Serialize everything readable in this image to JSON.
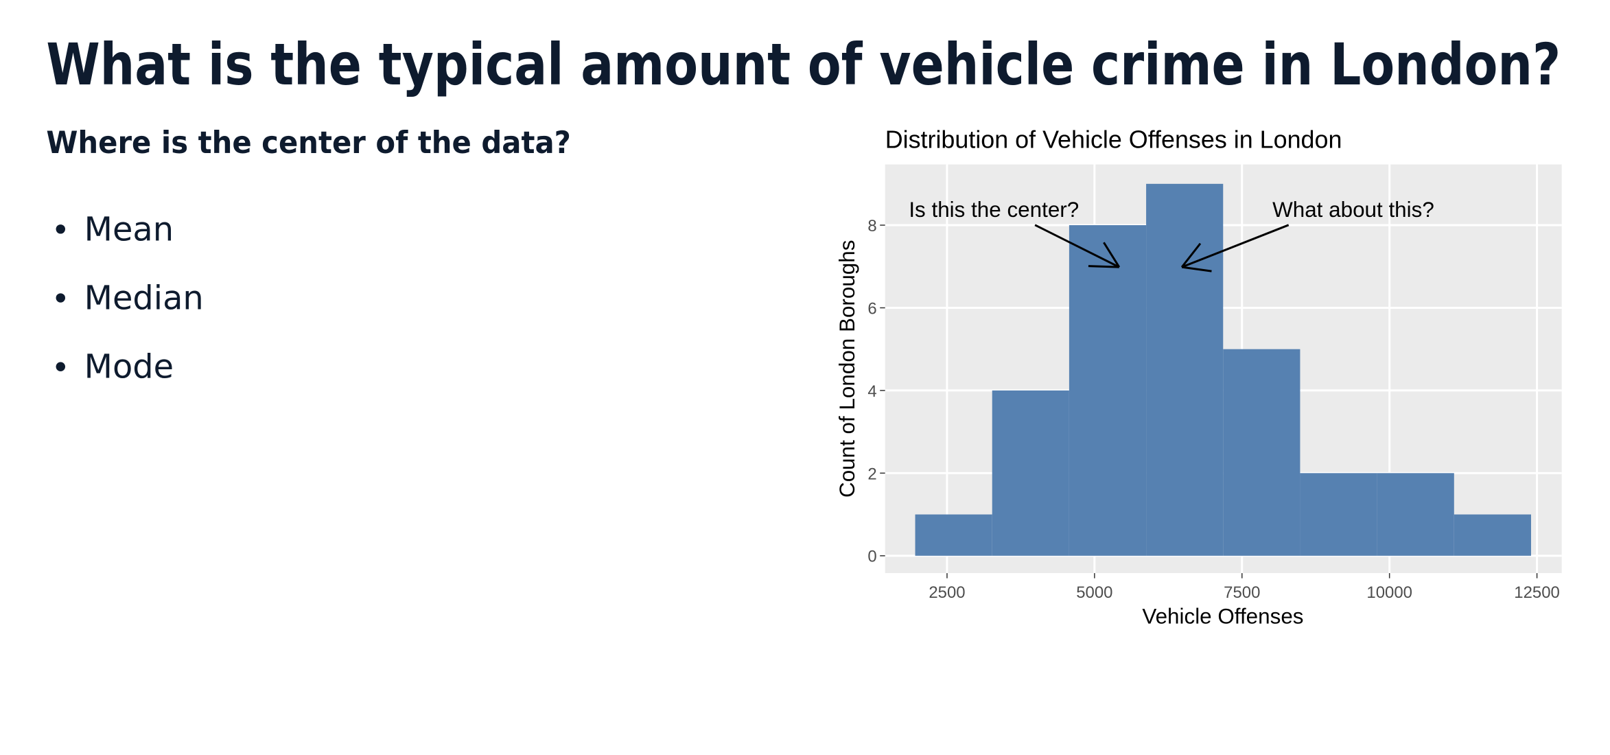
{
  "slide": {
    "title": "What is the typical amount of vehicle crime in London?",
    "subtitle": "Where is the center of the data?",
    "bullets": [
      "Mean",
      "Median",
      "Mode"
    ]
  },
  "chart_data": {
    "type": "histogram",
    "title": "Distribution of Vehicle Offenses in London",
    "x_label": "Vehicle Offenses",
    "y_label": "Count of London Boroughs",
    "bins": [
      1960,
      3265,
      4570,
      5875,
      7180,
      8485,
      9790,
      11095,
      12400
    ],
    "values": [
      1,
      4,
      8,
      9,
      5,
      2,
      2,
      1
    ],
    "color": "#5681b1",
    "xlim": [
      1450,
      12920
    ],
    "ylim": [
      -0.42,
      9.47
    ],
    "xticks": [
      2500,
      5000,
      7500,
      10000,
      12500
    ],
    "yticks": [
      0,
      2,
      4,
      6,
      8
    ],
    "grid": true,
    "annotations": [
      "Is this the center?",
      "What about this?"
    ]
  }
}
